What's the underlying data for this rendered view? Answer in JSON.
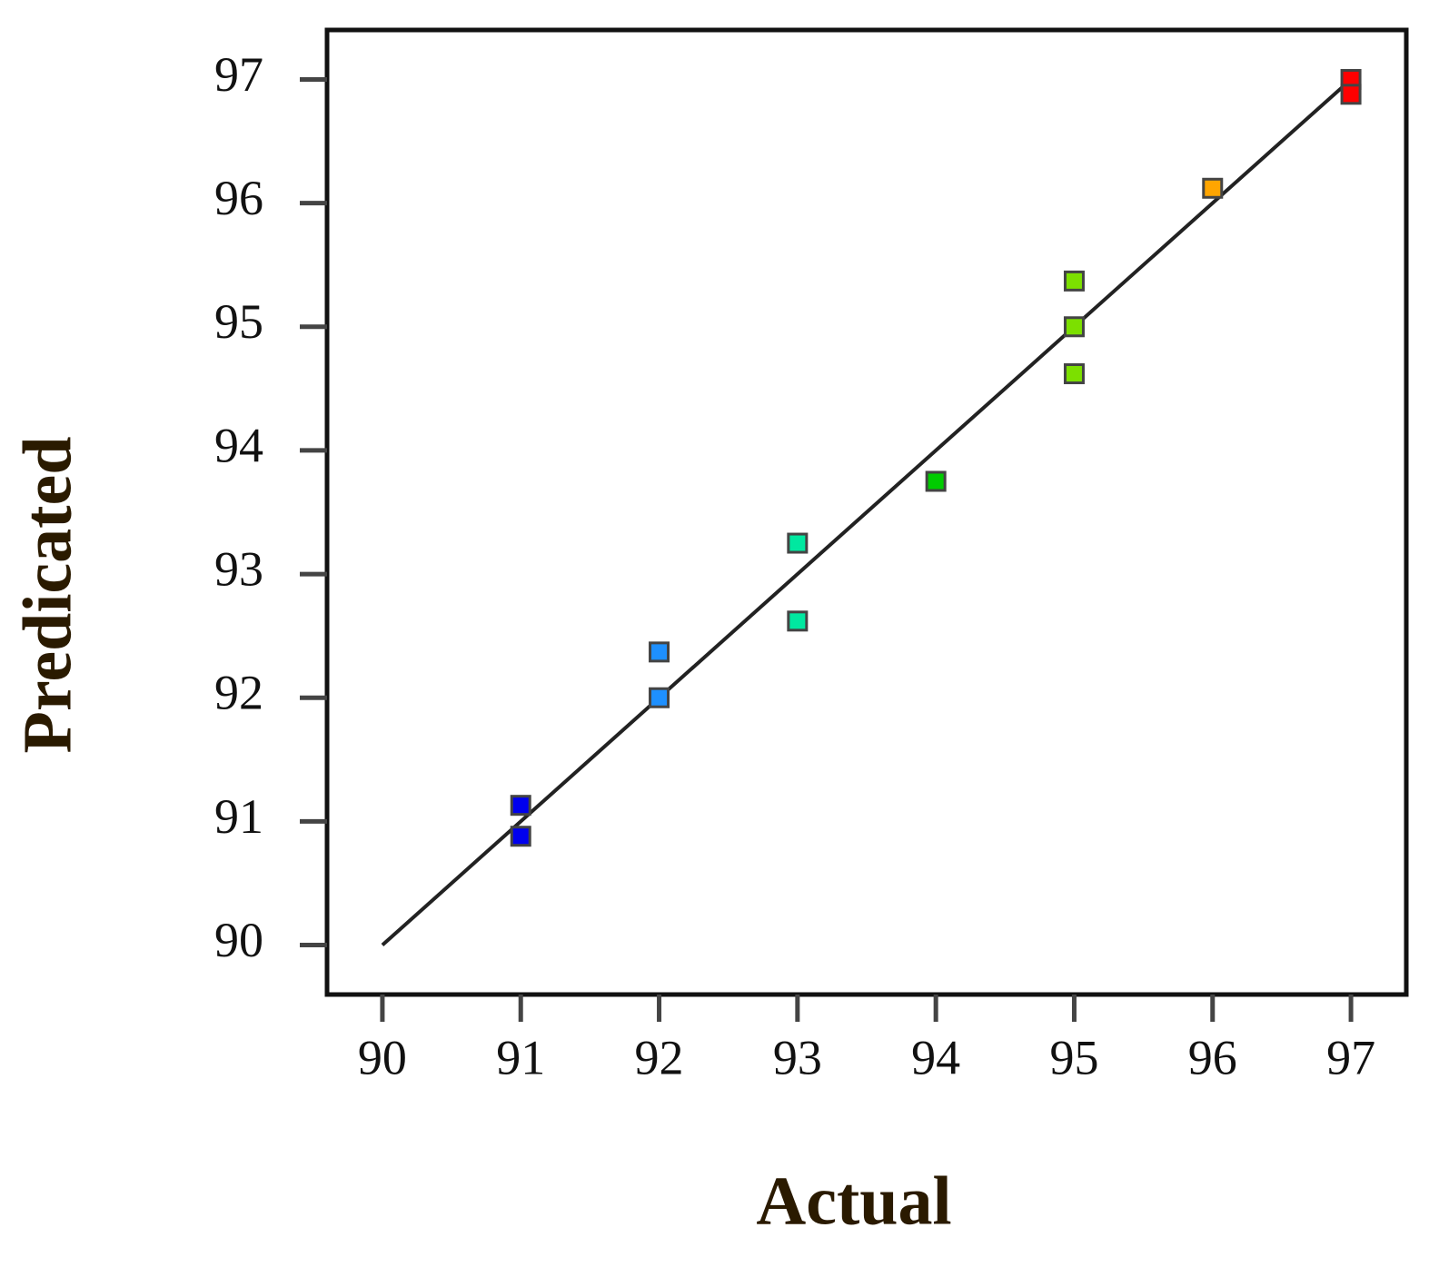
{
  "chart_data": {
    "type": "scatter",
    "x_label": "Actual",
    "y_label": "Predicated",
    "x": [
      91,
      91,
      92,
      92,
      93,
      93,
      94,
      95,
      95,
      95,
      96,
      97,
      97
    ],
    "values": [
      91.13,
      90.88,
      92.37,
      92.0,
      93.25,
      92.62,
      93.75,
      95.37,
      95.0,
      94.62,
      96.12,
      97.0,
      96.88
    ],
    "colors": [
      "#0000ee",
      "#0000ee",
      "#1e90ff",
      "#1e90ff",
      "#00e8a0",
      "#00e8a0",
      "#00cc00",
      "#7ce000",
      "#7ce000",
      "#7ce000",
      "#ffa500",
      "#ff0000",
      "#ff0000"
    ],
    "fit_line": {
      "x": [
        90,
        97
      ],
      "values": [
        90,
        97
      ],
      "color": "#222222"
    },
    "xlim": [
      89.6,
      97.4
    ],
    "ylim": [
      89.6,
      97.4
    ],
    "xticks": [
      90,
      91,
      92,
      93,
      94,
      95,
      96,
      97
    ],
    "yticks": [
      90,
      91,
      92,
      93,
      94,
      95,
      96,
      97
    ],
    "grid": false
  }
}
